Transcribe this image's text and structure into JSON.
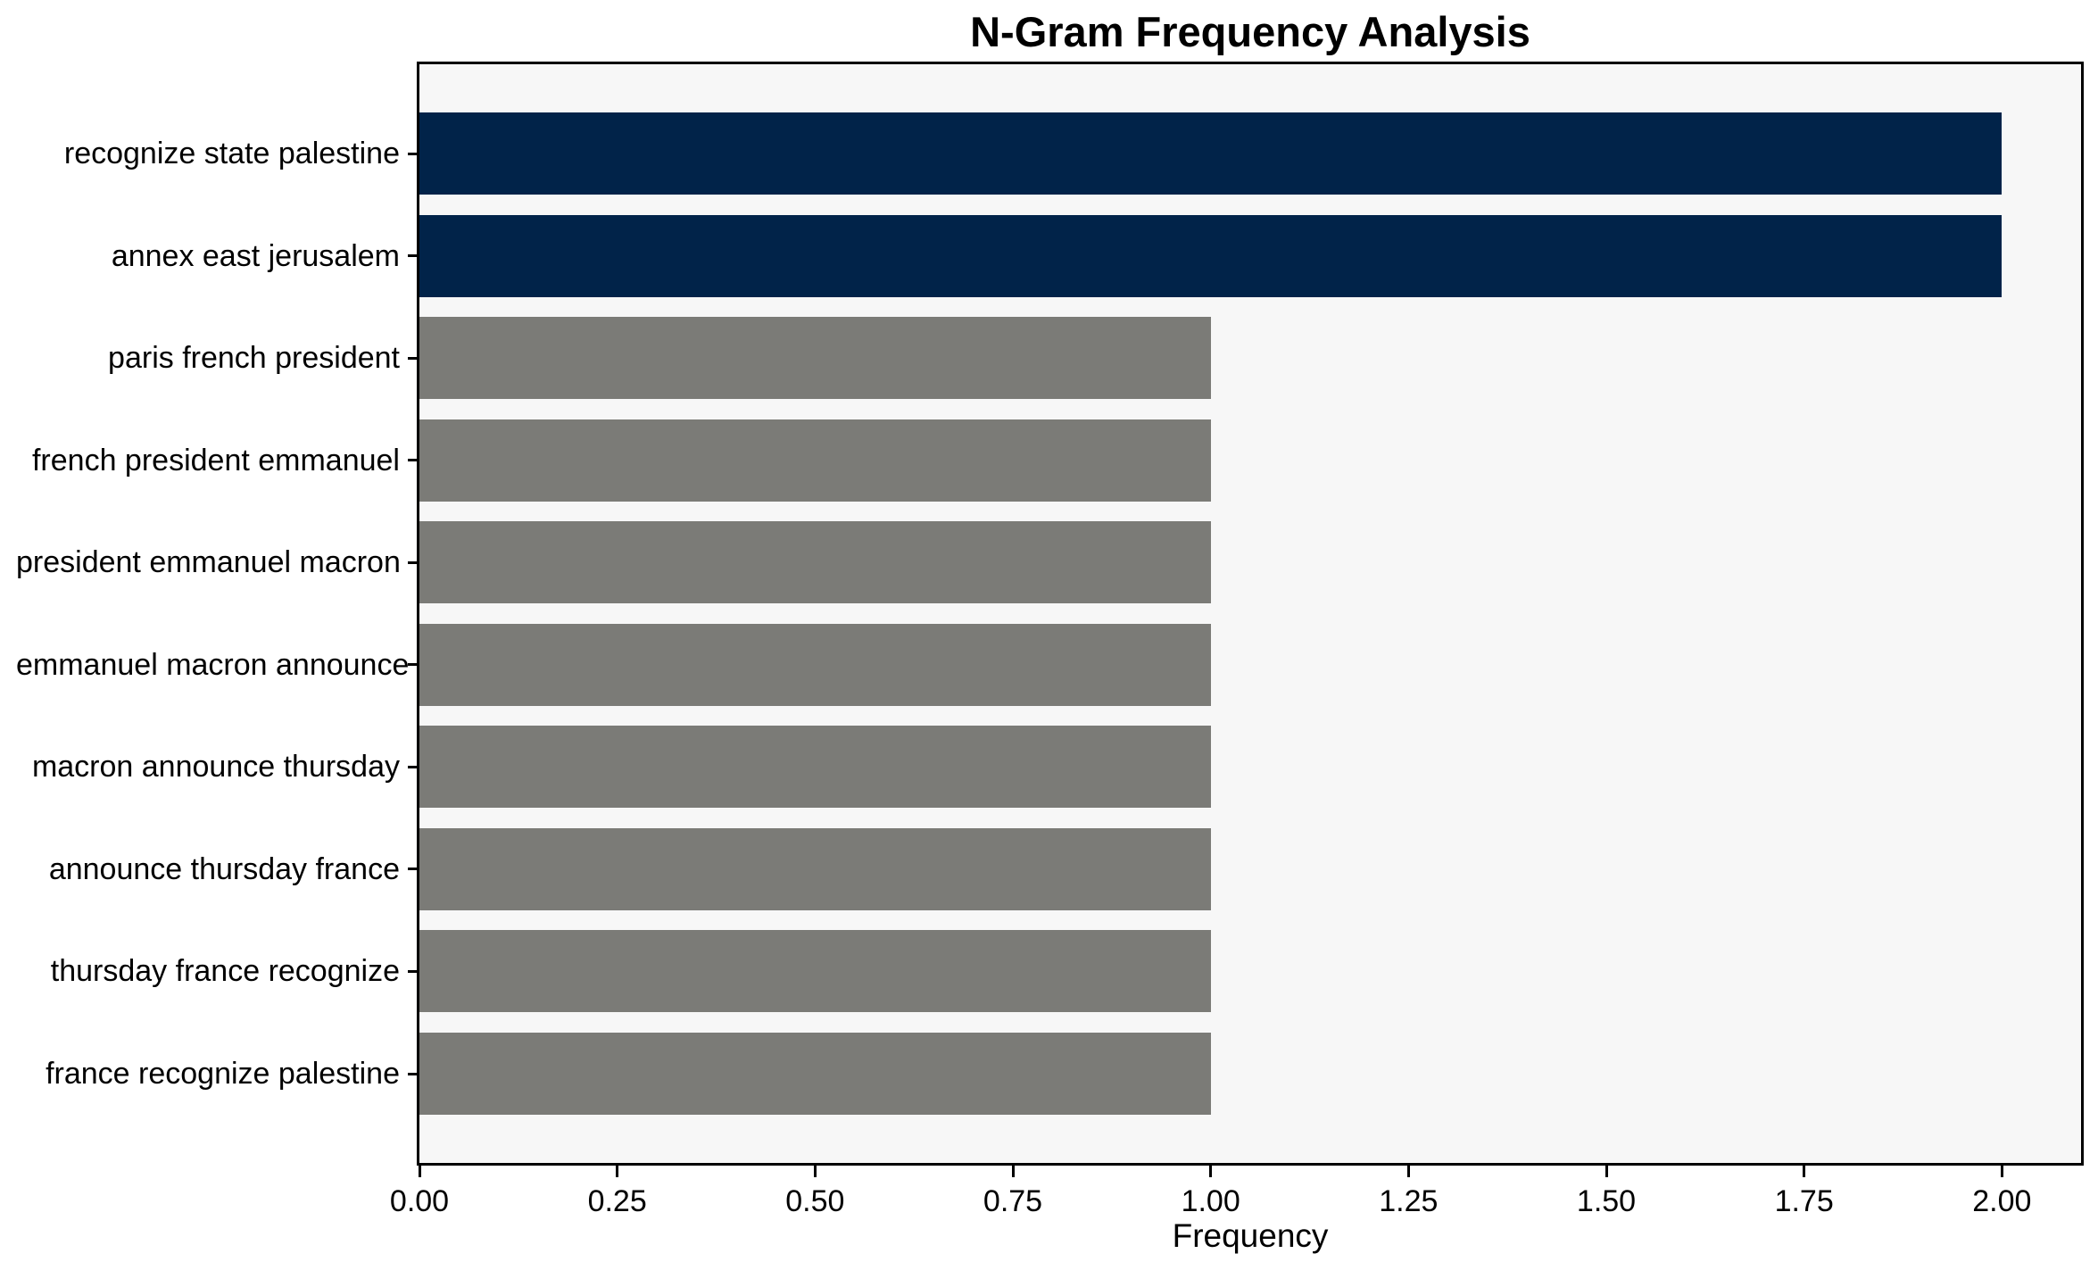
{
  "chart_data": {
    "type": "bar",
    "orientation": "horizontal",
    "title": "N-Gram Frequency Analysis",
    "xlabel": "Frequency",
    "ylabel": "",
    "categories": [
      "recognize state palestine",
      "annex east jerusalem",
      "paris french president",
      "french president emmanuel",
      "president emmanuel macron",
      "emmanuel macron announce",
      "macron announce thursday",
      "announce thursday france",
      "thursday france recognize",
      "france recognize palestine"
    ],
    "values": [
      2.0,
      2.0,
      1.0,
      1.0,
      1.0,
      1.0,
      1.0,
      1.0,
      1.0,
      1.0
    ],
    "bar_colors": [
      "#012349",
      "#012349",
      "#7b7b77",
      "#7b7b77",
      "#7b7b77",
      "#7b7b77",
      "#7b7b77",
      "#7b7b77",
      "#7b7b77",
      "#7b7b77"
    ],
    "xlim": [
      0,
      2.1
    ],
    "xticks": [
      0.0,
      0.25,
      0.5,
      0.75,
      1.0,
      1.25,
      1.5,
      1.75,
      2.0
    ],
    "xtick_labels": [
      "0.00",
      "0.25",
      "0.50",
      "0.75",
      "1.00",
      "1.25",
      "1.50",
      "1.75",
      "2.00"
    ],
    "grid": false,
    "legend": "none",
    "colors": {
      "highlight_bar": "#012349",
      "default_bar": "#7b7b77",
      "plot_background": "#f7f7f7",
      "figure_background": "#ffffff",
      "spine": "#000000",
      "text": "#000000"
    }
  }
}
